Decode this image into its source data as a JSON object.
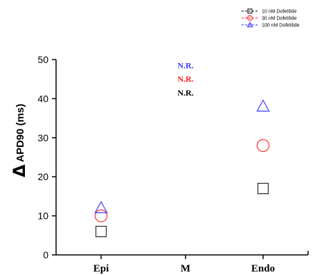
{
  "chart_data": {
    "type": "scatter",
    "categories": [
      "Epi",
      "M",
      "Endo"
    ],
    "ylabel_symbol": "Δ",
    "ylabel": "APD90 (ms)",
    "ylim": [
      0,
      50
    ],
    "yticks": [
      0,
      10,
      20,
      30,
      40,
      50
    ],
    "legend_position": "top-right",
    "series": [
      {
        "name": "10 nM Dofetilide",
        "marker": "square",
        "color": "#333333",
        "values": [
          6,
          null,
          17
        ]
      },
      {
        "name": "30 nM Dofetilide",
        "marker": "circle",
        "color": "#ff3b3b",
        "values": [
          10,
          null,
          28
        ]
      },
      {
        "name": "100 nM Dofetilide",
        "marker": "triangle",
        "color": "#4a4aff",
        "values": [
          12,
          null,
          38
        ]
      }
    ],
    "annotations": [
      {
        "text": "N.R.",
        "color": "#3b3bff",
        "category": "M",
        "y": 48.5
      },
      {
        "text": "N.R.",
        "color": "#ff2020",
        "category": "M",
        "y": 45
      },
      {
        "text": "N.R.",
        "color": "#000000",
        "category": "M",
        "y": 41.5
      }
    ]
  }
}
